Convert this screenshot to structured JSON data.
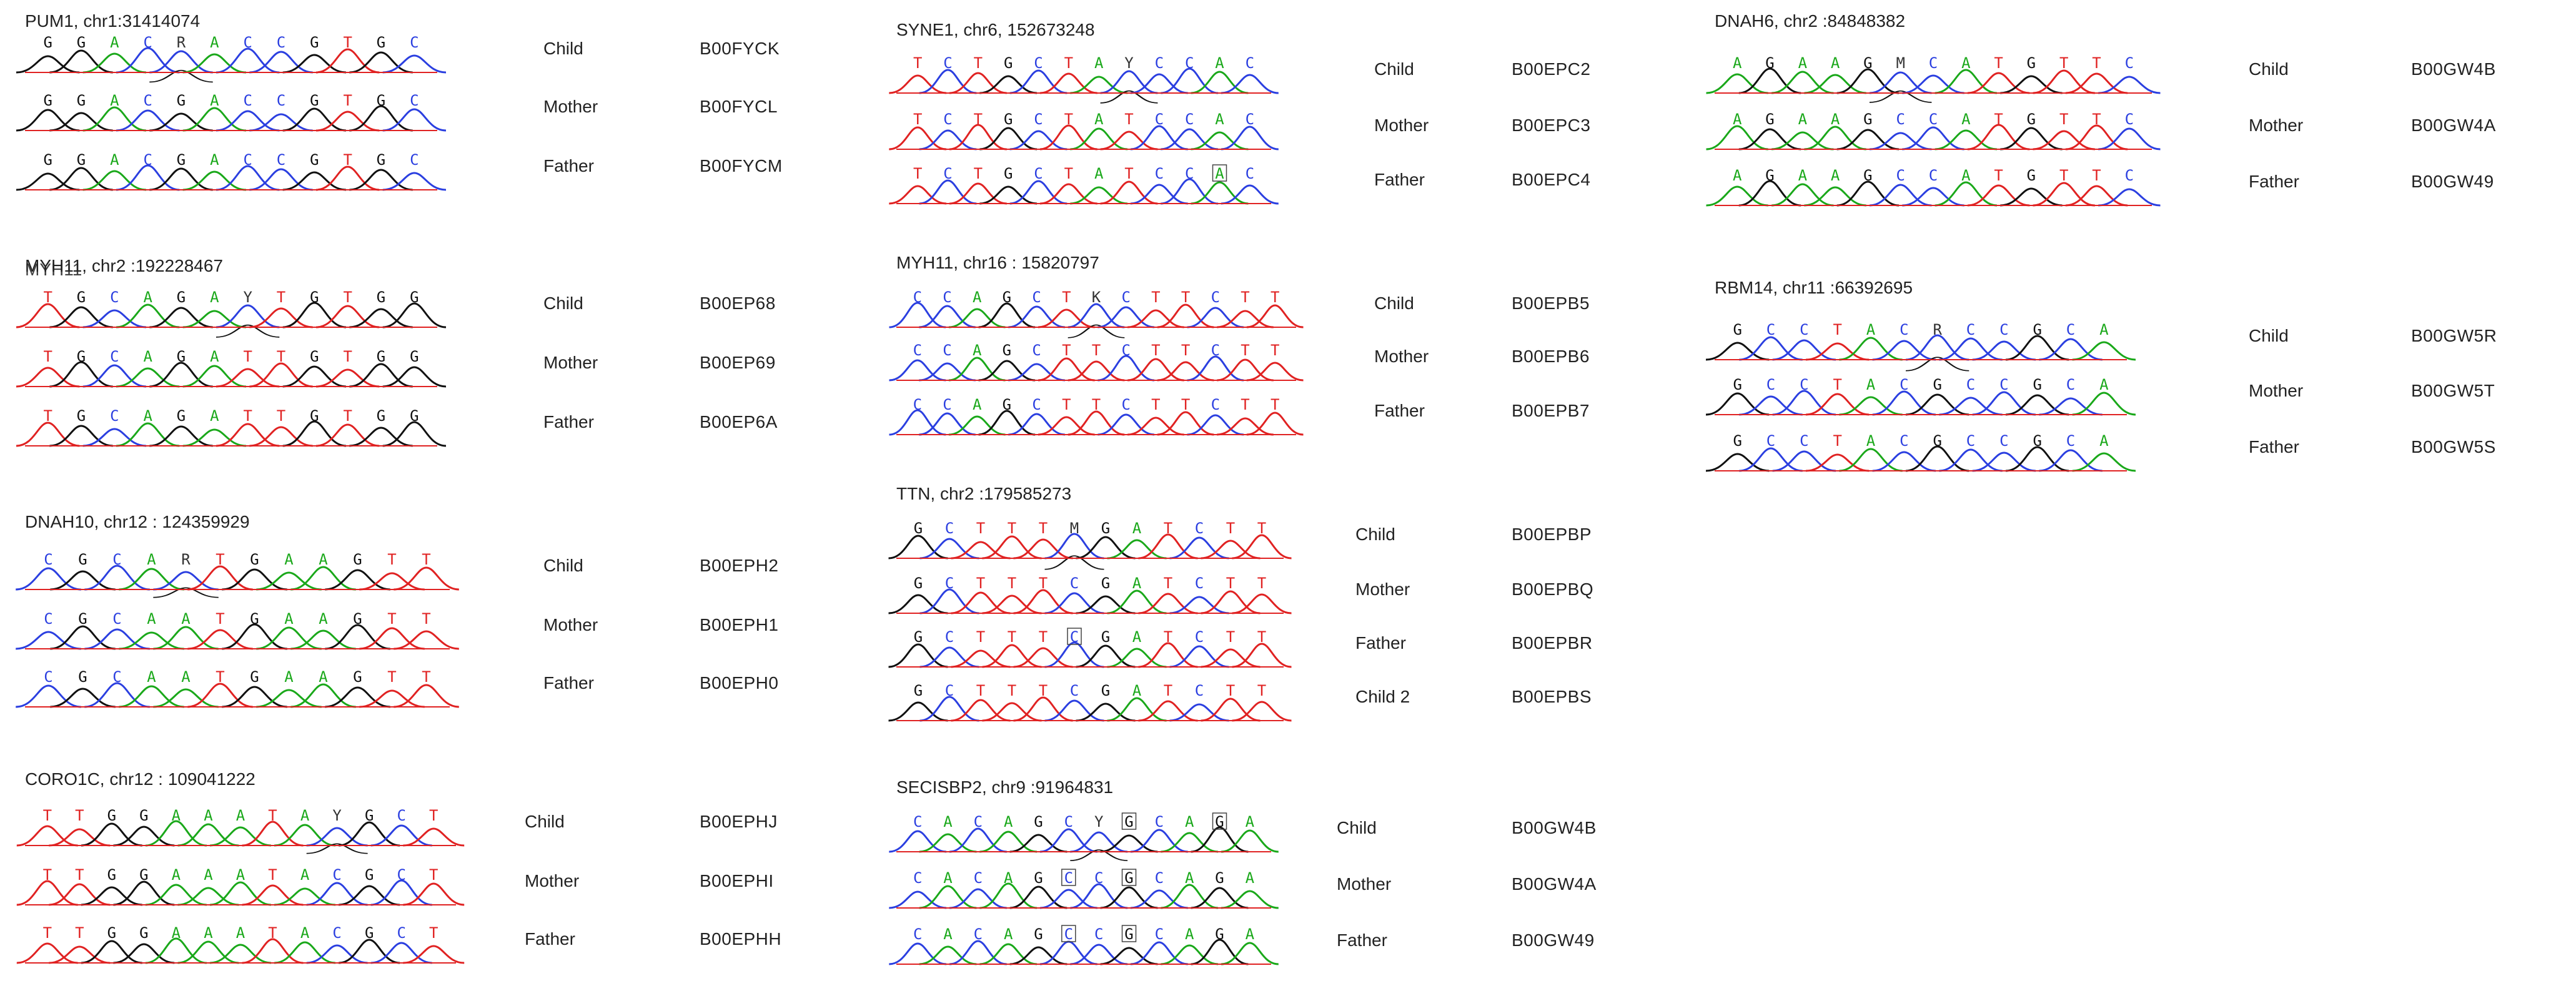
{
  "colors": {
    "A": "#1aa81a",
    "C": "#2b3fe0",
    "G": "#111111",
    "T": "#e02222",
    "other": "#333333",
    "baseline": "#e02222"
  },
  "panels": [
    {
      "gene": "PUM1, chr1:31414074",
      "rows": [
        {
          "role": "Child",
          "sample": "B00FYCK",
          "seq": "GGACRACCGTGC",
          "boxed": []
        },
        {
          "role": "Mother",
          "sample": "B00FYCL",
          "seq": "GGACGACCGTGC",
          "boxed": []
        },
        {
          "role": "Father",
          "sample": "B00FYCM",
          "seq": "GGACGACCGTGC",
          "boxed": []
        }
      ]
    },
    {
      "gene": "MYH11, chr2 :192228467",
      "overlap": "MYH11",
      "rows": [
        {
          "role": "Child",
          "sample": "B00EP68",
          "seq": "TGCAGAYTGTGG",
          "boxed": []
        },
        {
          "role": "Mother",
          "sample": "B00EP69",
          "seq": "TGCAGATTGTGG",
          "boxed": []
        },
        {
          "role": "Father",
          "sample": "B00EP6A",
          "seq": "TGCAGATTGTGG",
          "boxed": []
        }
      ]
    },
    {
      "gene": "DNAH10, chr12 : 124359929",
      "rows": [
        {
          "role": "Child",
          "sample": "B00EPH2",
          "seq": "CGCARTGAAGTT",
          "boxed": []
        },
        {
          "role": "Mother",
          "sample": "B00EPH1",
          "seq": "CGCAATGAAGTT",
          "boxed": []
        },
        {
          "role": "Father",
          "sample": "B00EPH0",
          "seq": "CGCAATGAAGTT",
          "boxed": []
        }
      ]
    },
    {
      "gene": "CORO1C, chr12 : 109041222",
      "rows": [
        {
          "role": "Child",
          "sample": "B00EPHJ",
          "seq": "TTGGAAATAYGCT",
          "boxed": []
        },
        {
          "role": "Mother",
          "sample": "B00EPHI",
          "seq": "TTGGAAATACGCT",
          "boxed": []
        },
        {
          "role": "Father",
          "sample": "B00EPHH",
          "seq": "TTGGAAATACGCT",
          "boxed": []
        }
      ]
    },
    {
      "gene": "SYNE1, chr6, 152673248",
      "rows": [
        {
          "role": "Child",
          "sample": "B00EPC2",
          "seq": "TCTGCTAYCCAC",
          "boxed": []
        },
        {
          "role": "Mother",
          "sample": "B00EPC3",
          "seq": "TCTGCTATCCAC",
          "boxed": []
        },
        {
          "role": "Father",
          "sample": "B00EPC4",
          "seq": "TCTGCTATCCAC",
          "boxed": [
            10
          ]
        }
      ]
    },
    {
      "gene": "MYH11, chr16 : 15820797",
      "rows": [
        {
          "role": "Child",
          "sample": "B00EPB5",
          "seq": "CCAGCTKCTTCTT",
          "boxed": []
        },
        {
          "role": "Mother",
          "sample": "B00EPB6",
          "seq": "CCAGCTTCTTCTT",
          "boxed": []
        },
        {
          "role": "Father",
          "sample": "B00EPB7",
          "seq": "CCAGCTTCTTCTT",
          "boxed": []
        }
      ]
    },
    {
      "gene": "TTN, chr2 :179585273",
      "rows": [
        {
          "role": "Child",
          "sample": "B00EPBP",
          "seq": "GCTTTMGATCTT",
          "boxed": []
        },
        {
          "role": "Mother",
          "sample": "B00EPBQ",
          "seq": "GCTTTCGATCTT",
          "boxed": []
        },
        {
          "role": "Father",
          "sample": "B00EPBR",
          "seq": "GCTTTCGATCTT",
          "boxed": [
            5
          ]
        },
        {
          "role": "Child 2",
          "sample": "B00EPBS",
          "seq": "GCTTTCGATCTT",
          "boxed": []
        }
      ]
    },
    {
      "gene": "SECISBP2, chr9 :91964831",
      "rows": [
        {
          "role": "Child",
          "sample": "B00GW4B",
          "seq": "CACAGCYGCAGA",
          "boxed": [
            7,
            10
          ]
        },
        {
          "role": "Mother",
          "sample": "B00GW4A",
          "seq": "CACAGCCGCAGA",
          "boxed": [
            5,
            7
          ]
        },
        {
          "role": "Father",
          "sample": "B00GW49",
          "seq": "CACAGCCGCAGA",
          "boxed": [
            5,
            7
          ]
        }
      ]
    },
    {
      "gene": "DNAH6, chr2 :84848382",
      "rows": [
        {
          "role": "Child",
          "sample": "B00GW4B",
          "seq": "AGAAGMCATGTTC",
          "boxed": []
        },
        {
          "role": "Mother",
          "sample": "B00GW4A",
          "seq": "AGAAGCCATGTTC",
          "boxed": []
        },
        {
          "role": "Father",
          "sample": "B00GW49",
          "seq": "AGAAGCCATGTTC",
          "boxed": []
        }
      ]
    },
    {
      "gene": "RBM14, chr11 :66392695",
      "rows": [
        {
          "role": "Child",
          "sample": "B00GW5R",
          "seq": "GCCTACRCCGCA",
          "boxed": []
        },
        {
          "role": "Mother",
          "sample": "B00GW5T",
          "seq": "GCCTACGCCGCA",
          "boxed": []
        },
        {
          "role": "Father",
          "sample": "B00GW5S",
          "seq": "GCCTACGCCGCA",
          "boxed": []
        }
      ]
    }
  ]
}
